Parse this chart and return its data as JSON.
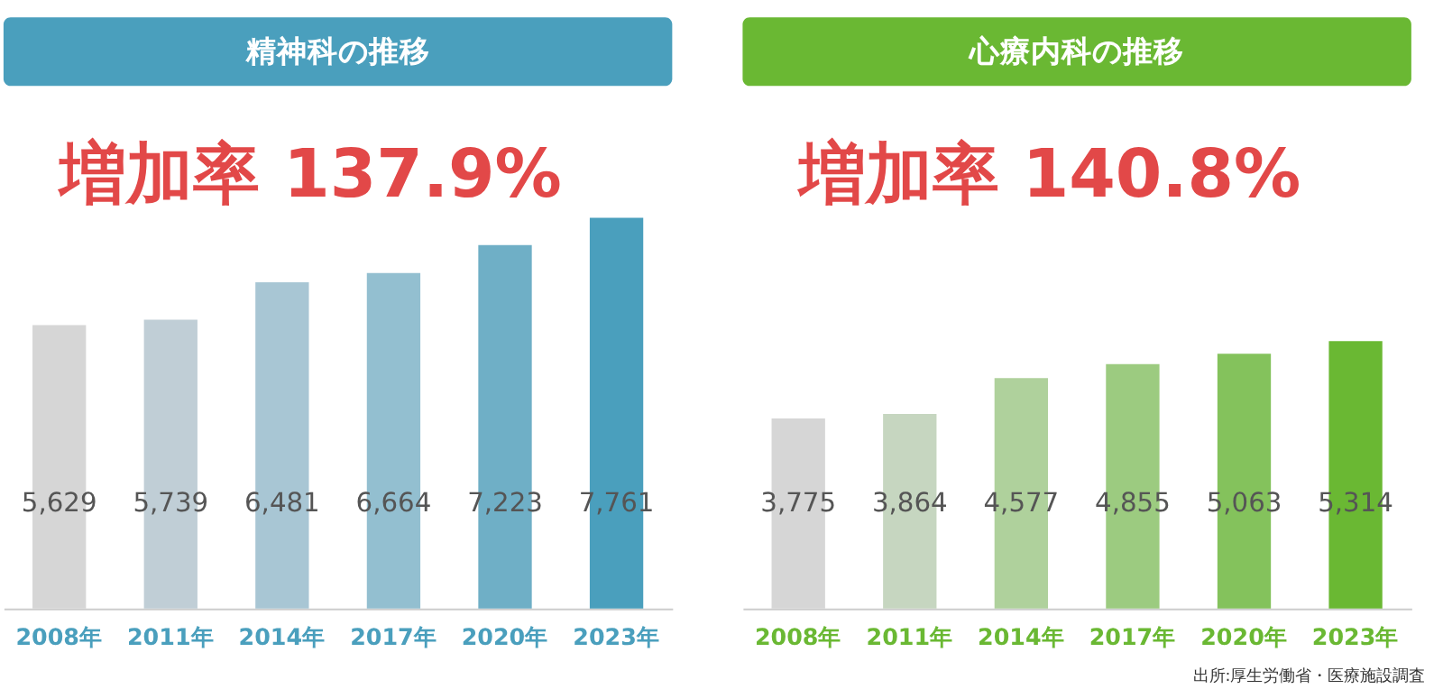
{
  "chart_data": [
    {
      "type": "bar",
      "title": "精神科の推移",
      "categories": [
        "2008年",
        "2011年",
        "2014年",
        "2017年",
        "2020年",
        "2023年"
      ],
      "values": [
        5629,
        5739,
        6481,
        6664,
        7223,
        7761
      ],
      "colors": [
        "#d6d6d6",
        "#c0ced6",
        "#a8c6d4",
        "#93bfd0",
        "#6fafc6",
        "#4a9fbd"
      ],
      "value_labels": [
        "5,629",
        "5,739",
        "6,481",
        "6,664",
        "7,223",
        "7,761"
      ],
      "tick_labels": "x",
      "annotations": [
        "増加率 137.9%"
      ]
    },
    {
      "type": "bar",
      "title": "心療内科の推移",
      "categories": [
        "2008年",
        "2011年",
        "2014年",
        "2017年",
        "2020年",
        "2023年"
      ],
      "values": [
        3775,
        3864,
        4577,
        4855,
        5063,
        5314
      ],
      "colors": [
        "#d6d6d6",
        "#c6d6c0",
        "#afd19c",
        "#9ccb80",
        "#84c25c",
        "#6ab833"
      ],
      "value_labels": [
        "3,775",
        "3,864",
        "4,577",
        "4,855",
        "5,063",
        "5,314"
      ],
      "tick_labels": "x",
      "annotations": [
        "増加率 140.8%",
        "出所:厚生労働省・医療施設調査"
      ]
    }
  ]
}
